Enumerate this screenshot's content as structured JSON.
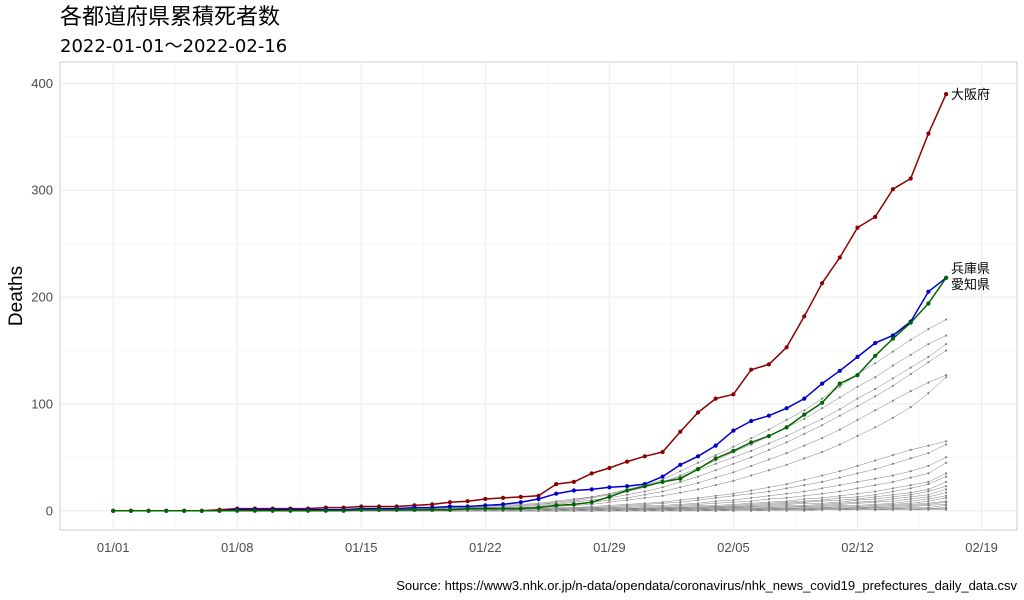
{
  "chart_data": {
    "type": "line",
    "title": "各都道府県累積死者数",
    "subtitle": "2022-01-01〜2022-02-16",
    "ylabel": "Deaths",
    "xlabel": "",
    "caption": "Source: https://www3.nhk.or.jp/n-data/opendata/coronavirus/nhk_news_covid19_prefectures_daily_data.csv",
    "x_start": "2022-01-01",
    "x_end": "2022-02-16",
    "xlim": [
      "2021-12-29",
      "2022-02-21"
    ],
    "ylim": [
      -18,
      420
    ],
    "x_ticks": [
      "01/01",
      "01/08",
      "01/15",
      "01/22",
      "01/29",
      "02/05",
      "02/12",
      "02/19"
    ],
    "x_tick_dates": [
      "2022-01-01",
      "2022-01-08",
      "2022-01-15",
      "2022-01-22",
      "2022-01-29",
      "2022-02-05",
      "2022-02-12",
      "2022-02-19"
    ],
    "y_ticks": [
      0,
      100,
      200,
      300,
      400
    ],
    "grid": true,
    "highlight_series": [
      {
        "name": "大阪府",
        "color": "#8b0000",
        "values": [
          0,
          0,
          0,
          0,
          0,
          0,
          1,
          2,
          2,
          2,
          2,
          2,
          3,
          3,
          4,
          4,
          4,
          5,
          6,
          8,
          9,
          11,
          12,
          13,
          14,
          25,
          27,
          35,
          40,
          46,
          51,
          55,
          74,
          92,
          105,
          109,
          132,
          137,
          153,
          182,
          213,
          237,
          265,
          275,
          301,
          311,
          353,
          390
        ]
      },
      {
        "name": "兵庫県",
        "color": "#0000cd",
        "values": [
          0,
          0,
          0,
          0,
          0,
          0,
          0,
          1,
          1,
          1,
          1,
          1,
          1,
          1,
          2,
          2,
          2,
          3,
          3,
          4,
          4,
          5,
          6,
          8,
          11,
          16,
          19,
          20,
          22,
          23,
          25,
          32,
          43,
          51,
          61,
          75,
          84,
          89,
          96,
          105,
          119,
          131,
          144,
          157,
          164,
          177,
          205,
          218
        ]
      },
      {
        "name": "愛知県",
        "color": "#006400",
        "values": [
          0,
          0,
          0,
          0,
          0,
          0,
          0,
          0,
          0,
          0,
          0,
          0,
          0,
          0,
          1,
          1,
          1,
          1,
          1,
          1,
          2,
          2,
          2,
          2,
          3,
          5,
          6,
          8,
          13,
          19,
          23,
          27,
          30,
          39,
          49,
          56,
          64,
          70,
          78,
          90,
          101,
          119,
          127,
          145,
          161,
          176,
          194,
          218
        ]
      }
    ],
    "background_series_color": "#808080",
    "background_series": [
      [
        0,
        0,
        0,
        0,
        0,
        0,
        0,
        0,
        0,
        0,
        0,
        0,
        0,
        0,
        1,
        1,
        1,
        2,
        2,
        3,
        3,
        3,
        4,
        5,
        6,
        8,
        10,
        13,
        16,
        20,
        24,
        29,
        37,
        45,
        52,
        60,
        68,
        76,
        85,
        94,
        105,
        116,
        128,
        138,
        149,
        160,
        170,
        179
      ],
      [
        0,
        0,
        0,
        0,
        0,
        0,
        0,
        0,
        0,
        0,
        0,
        0,
        0,
        0,
        0,
        1,
        1,
        1,
        2,
        2,
        3,
        3,
        4,
        5,
        6,
        7,
        9,
        12,
        15,
        18,
        22,
        27,
        33,
        40,
        47,
        55,
        62,
        70,
        78,
        86,
        96,
        106,
        116,
        125,
        136,
        146,
        156,
        164
      ],
      [
        0,
        0,
        0,
        0,
        0,
        0,
        0,
        0,
        0,
        0,
        0,
        0,
        0,
        1,
        1,
        1,
        1,
        2,
        2,
        3,
        3,
        4,
        5,
        6,
        7,
        9,
        11,
        13,
        16,
        19,
        23,
        27,
        32,
        38,
        44,
        50,
        56,
        63,
        70,
        78,
        86,
        95,
        105,
        114,
        124,
        134,
        144,
        156
      ],
      [
        0,
        0,
        0,
        0,
        0,
        0,
        0,
        0,
        0,
        0,
        0,
        0,
        0,
        0,
        0,
        0,
        1,
        1,
        1,
        2,
        2,
        3,
        3,
        4,
        5,
        6,
        8,
        10,
        12,
        15,
        18,
        22,
        27,
        32,
        38,
        44,
        50,
        57,
        64,
        72,
        80,
        89,
        98,
        107,
        117,
        128,
        139,
        150
      ],
      [
        0,
        0,
        0,
        0,
        0,
        0,
        0,
        0,
        0,
        0,
        0,
        0,
        0,
        0,
        0,
        0,
        0,
        1,
        1,
        1,
        2,
        2,
        3,
        3,
        4,
        5,
        6,
        8,
        10,
        12,
        15,
        18,
        22,
        26,
        31,
        36,
        42,
        48,
        54,
        61,
        68,
        76,
        85,
        94,
        103,
        112,
        120,
        127
      ],
      [
        0,
        0,
        0,
        0,
        0,
        0,
        0,
        0,
        0,
        0,
        0,
        0,
        0,
        0,
        0,
        0,
        0,
        0,
        1,
        1,
        1,
        2,
        2,
        3,
        3,
        4,
        5,
        6,
        8,
        10,
        12,
        14,
        17,
        20,
        24,
        28,
        33,
        38,
        43,
        49,
        55,
        62,
        70,
        78,
        87,
        97,
        110,
        125
      ],
      [
        0,
        0,
        0,
        0,
        0,
        0,
        0,
        0,
        0,
        0,
        0,
        0,
        0,
        0,
        0,
        0,
        0,
        0,
        0,
        1,
        1,
        1,
        2,
        2,
        2,
        3,
        3,
        4,
        5,
        6,
        7,
        8,
        10,
        12,
        14,
        16,
        19,
        22,
        25,
        29,
        33,
        37,
        42,
        47,
        52,
        57,
        61,
        65
      ],
      [
        0,
        0,
        0,
        0,
        0,
        0,
        0,
        0,
        0,
        0,
        0,
        0,
        0,
        0,
        0,
        0,
        0,
        0,
        0,
        0,
        1,
        1,
        1,
        2,
        2,
        2,
        3,
        3,
        4,
        5,
        6,
        7,
        8,
        10,
        12,
        14,
        16,
        18,
        21,
        24,
        27,
        31,
        35,
        39,
        44,
        49,
        54,
        62
      ],
      [
        0,
        0,
        0,
        0,
        0,
        0,
        0,
        0,
        0,
        0,
        0,
        0,
        0,
        0,
        0,
        0,
        0,
        0,
        0,
        0,
        0,
        1,
        1,
        1,
        1,
        2,
        2,
        3,
        3,
        4,
        5,
        5,
        6,
        7,
        9,
        10,
        12,
        14,
        16,
        18,
        21,
        24,
        27,
        30,
        33,
        37,
        42,
        50
      ],
      [
        0,
        0,
        0,
        0,
        0,
        0,
        0,
        0,
        0,
        0,
        0,
        0,
        0,
        0,
        0,
        0,
        0,
        0,
        0,
        0,
        0,
        0,
        1,
        1,
        1,
        1,
        2,
        2,
        3,
        3,
        4,
        4,
        5,
        6,
        7,
        8,
        9,
        11,
        12,
        14,
        16,
        18,
        21,
        24,
        27,
        31,
        35,
        45
      ],
      [
        0,
        0,
        0,
        0,
        0,
        0,
        0,
        0,
        0,
        0,
        0,
        0,
        0,
        0,
        0,
        0,
        0,
        0,
        0,
        0,
        0,
        0,
        0,
        1,
        1,
        1,
        1,
        2,
        2,
        2,
        3,
        3,
        4,
        5,
        5,
        6,
        7,
        8,
        9,
        11,
        12,
        14,
        16,
        18,
        21,
        24,
        27,
        35
      ],
      [
        0,
        0,
        0,
        0,
        0,
        0,
        0,
        0,
        0,
        0,
        0,
        0,
        0,
        0,
        0,
        0,
        0,
        0,
        0,
        0,
        0,
        0,
        0,
        0,
        1,
        1,
        1,
        1,
        2,
        2,
        2,
        3,
        3,
        4,
        4,
        5,
        6,
        7,
        8,
        9,
        10,
        12,
        13,
        15,
        18,
        21,
        25,
        32
      ],
      [
        0,
        0,
        0,
        0,
        0,
        0,
        0,
        0,
        0,
        0,
        0,
        0,
        0,
        0,
        0,
        0,
        0,
        0,
        0,
        0,
        0,
        0,
        0,
        0,
        0,
        1,
        1,
        1,
        1,
        2,
        2,
        2,
        3,
        3,
        4,
        4,
        5,
        6,
        7,
        8,
        9,
        10,
        11,
        13,
        15,
        17,
        20,
        27
      ],
      [
        0,
        0,
        0,
        0,
        0,
        0,
        0,
        0,
        0,
        0,
        0,
        0,
        0,
        0,
        0,
        0,
        0,
        0,
        0,
        0,
        0,
        0,
        0,
        0,
        0,
        0,
        1,
        1,
        1,
        1,
        2,
        2,
        2,
        3,
        3,
        4,
        4,
        5,
        6,
        7,
        7,
        8,
        10,
        11,
        13,
        15,
        18,
        23
      ],
      [
        0,
        0,
        0,
        0,
        0,
        0,
        0,
        0,
        0,
        0,
        0,
        0,
        0,
        0,
        0,
        0,
        0,
        0,
        0,
        0,
        0,
        0,
        0,
        0,
        0,
        0,
        0,
        1,
        1,
        1,
        1,
        2,
        2,
        2,
        3,
        3,
        4,
        4,
        5,
        5,
        6,
        7,
        8,
        9,
        11,
        13,
        15,
        20
      ],
      [
        0,
        0,
        0,
        0,
        0,
        0,
        0,
        0,
        0,
        0,
        0,
        0,
        0,
        0,
        0,
        0,
        0,
        0,
        0,
        0,
        0,
        0,
        0,
        0,
        0,
        0,
        0,
        0,
        1,
        1,
        1,
        1,
        2,
        2,
        2,
        3,
        3,
        3,
        4,
        4,
        5,
        6,
        7,
        8,
        9,
        11,
        13,
        17
      ],
      [
        0,
        0,
        0,
        0,
        0,
        0,
        0,
        0,
        0,
        0,
        0,
        0,
        0,
        0,
        0,
        0,
        0,
        0,
        0,
        0,
        0,
        0,
        0,
        0,
        0,
        0,
        0,
        0,
        0,
        1,
        1,
        1,
        1,
        1,
        2,
        2,
        2,
        3,
        3,
        4,
        4,
        5,
        5,
        6,
        7,
        9,
        11,
        14
      ],
      [
        0,
        0,
        0,
        0,
        0,
        0,
        0,
        0,
        0,
        0,
        0,
        0,
        0,
        0,
        0,
        0,
        0,
        0,
        0,
        0,
        0,
        0,
        0,
        0,
        0,
        0,
        0,
        0,
        0,
        0,
        1,
        1,
        1,
        1,
        1,
        2,
        2,
        2,
        2,
        3,
        3,
        4,
        4,
        5,
        6,
        7,
        9,
        12
      ],
      [
        0,
        0,
        0,
        0,
        0,
        0,
        0,
        0,
        0,
        0,
        0,
        0,
        0,
        0,
        0,
        0,
        0,
        0,
        0,
        0,
        0,
        0,
        0,
        0,
        0,
        0,
        0,
        0,
        0,
        0,
        0,
        1,
        1,
        1,
        1,
        1,
        1,
        2,
        2,
        2,
        3,
        3,
        3,
        4,
        5,
        6,
        7,
        9
      ],
      [
        0,
        0,
        0,
        0,
        0,
        0,
        0,
        0,
        0,
        0,
        0,
        0,
        0,
        0,
        0,
        0,
        0,
        0,
        0,
        0,
        0,
        0,
        0,
        0,
        0,
        0,
        0,
        0,
        0,
        0,
        0,
        0,
        1,
        1,
        1,
        1,
        1,
        1,
        2,
        2,
        2,
        2,
        3,
        3,
        4,
        5,
        6,
        8
      ],
      [
        0,
        0,
        0,
        0,
        0,
        0,
        0,
        0,
        0,
        0,
        0,
        0,
        0,
        0,
        0,
        0,
        0,
        0,
        0,
        0,
        0,
        0,
        0,
        0,
        0,
        0,
        0,
        0,
        0,
        0,
        0,
        0,
        0,
        1,
        1,
        1,
        1,
        1,
        1,
        1,
        2,
        2,
        2,
        3,
        3,
        4,
        5,
        6
      ],
      [
        0,
        0,
        0,
        0,
        0,
        0,
        0,
        0,
        0,
        0,
        0,
        0,
        0,
        0,
        0,
        0,
        0,
        0,
        0,
        0,
        0,
        0,
        0,
        0,
        0,
        0,
        0,
        0,
        0,
        0,
        0,
        0,
        0,
        0,
        1,
        1,
        1,
        1,
        1,
        1,
        1,
        1,
        2,
        2,
        2,
        3,
        3,
        5
      ],
      [
        0,
        0,
        0,
        0,
        0,
        0,
        0,
        0,
        0,
        0,
        0,
        0,
        0,
        0,
        0,
        0,
        0,
        0,
        0,
        0,
        0,
        0,
        0,
        0,
        0,
        0,
        0,
        0,
        0,
        0,
        0,
        0,
        0,
        0,
        0,
        1,
        1,
        1,
        1,
        1,
        1,
        1,
        1,
        1,
        2,
        2,
        2,
        3
      ],
      [
        0,
        0,
        0,
        0,
        0,
        0,
        0,
        0,
        0,
        0,
        0,
        0,
        0,
        0,
        0,
        0,
        0,
        0,
        0,
        0,
        0,
        0,
        0,
        0,
        0,
        0,
        0,
        0,
        0,
        0,
        0,
        0,
        0,
        0,
        0,
        0,
        0,
        1,
        1,
        1,
        1,
        1,
        1,
        1,
        1,
        1,
        2,
        2
      ],
      [
        0,
        0,
        0,
        0,
        0,
        0,
        0,
        0,
        0,
        0,
        0,
        0,
        0,
        0,
        0,
        0,
        0,
        0,
        0,
        0,
        0,
        0,
        0,
        0,
        0,
        0,
        0,
        0,
        0,
        0,
        0,
        0,
        0,
        0,
        0,
        0,
        0,
        0,
        0,
        0,
        1,
        1,
        1,
        1,
        1,
        1,
        1,
        1
      ]
    ]
  }
}
